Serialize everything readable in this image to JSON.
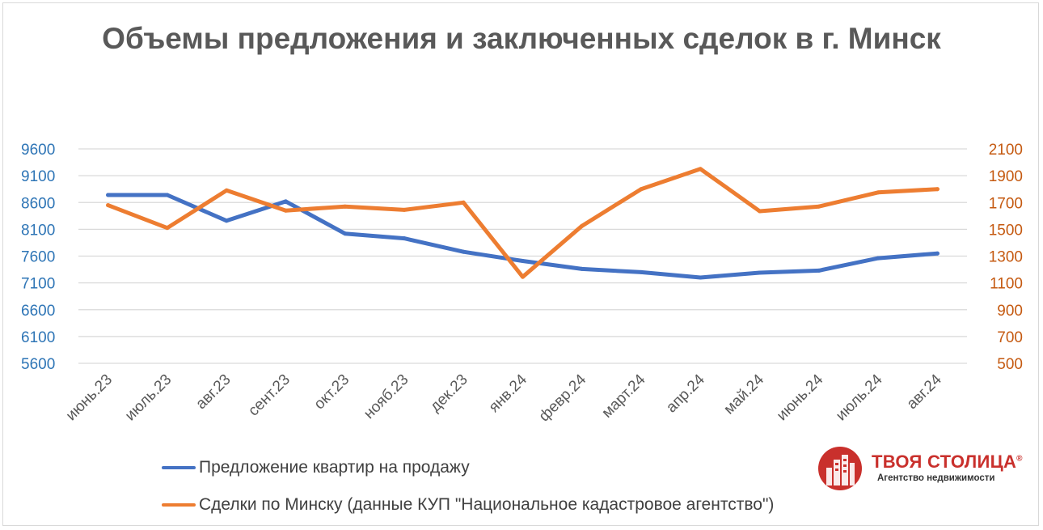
{
  "chart_data": {
    "type": "line",
    "title": "Объемы предложения и заключенных сделок в г. Минск",
    "categories": [
      "июнь.23",
      "июль.23",
      "авг.23",
      "сент.23",
      "окт.23",
      "нояб.23",
      "дек.23",
      "янв.24",
      "февр.24",
      "март.24",
      "апр.24",
      "май.24",
      "июнь.24",
      "июль.24",
      "авг.24"
    ],
    "y_left": {
      "ticks": [
        "9600",
        "9100",
        "8600",
        "8100",
        "7600",
        "7100",
        "6600",
        "6100",
        "5600"
      ],
      "ylim": [
        5600,
        9600
      ],
      "color": "#2e75b6"
    },
    "y_right": {
      "ticks": [
        "2100",
        "1900",
        "1700",
        "1500",
        "1300",
        "1100",
        "900",
        "700",
        "500"
      ],
      "ylim": [
        500,
        2100
      ],
      "color": "#c55a11"
    },
    "grid": true,
    "legend_position": "bottom-left",
    "series": [
      {
        "name": "Предложение квартир на продажу",
        "axis": "left",
        "color": "#4472c4",
        "values": [
          8740,
          8740,
          8260,
          8620,
          8020,
          7930,
          7680,
          7510,
          7360,
          7300,
          7200,
          7290,
          7330,
          7560,
          7650
        ]
      },
      {
        "name": "Сделки по Минску (данные КУП \"Национальное кадастровое агентство\")",
        "axis": "right",
        "color": "#ed7d31",
        "values": [
          1680,
          1510,
          1790,
          1640,
          1670,
          1645,
          1700,
          1145,
          1525,
          1800,
          1950,
          1635,
          1670,
          1775,
          1800
        ]
      }
    ]
  },
  "logo": {
    "name": "ТВОЯ СТОЛИЦА",
    "registered_mark": "®",
    "subtitle": "Агентство недвижимости"
  }
}
